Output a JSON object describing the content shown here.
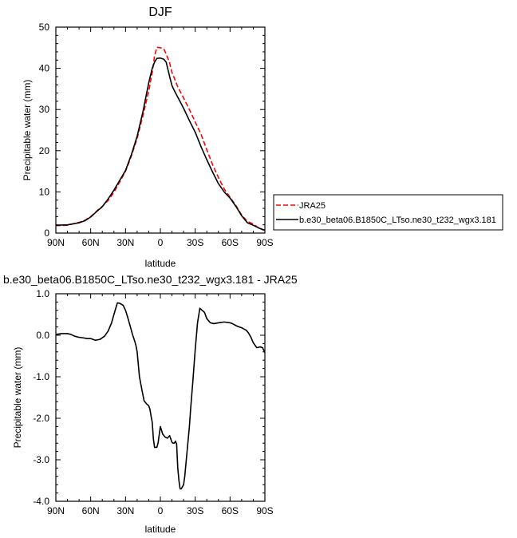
{
  "chart_data": [
    {
      "type": "line",
      "title": "DJF",
      "xlabel": "latitude",
      "ylabel": "Precipitable water (mm)",
      "xlim": [
        90,
        -90
      ],
      "ylim": [
        0,
        50
      ],
      "x_ticks": [
        {
          "value": 90,
          "label": "90N"
        },
        {
          "value": 60,
          "label": "60N"
        },
        {
          "value": 30,
          "label": "30N"
        },
        {
          "value": 0,
          "label": "0"
        },
        {
          "value": -30,
          "label": "30S"
        },
        {
          "value": -60,
          "label": "60S"
        },
        {
          "value": -90,
          "label": "90S"
        }
      ],
      "y_ticks": [
        {
          "value": 0,
          "label": "0"
        },
        {
          "value": 10,
          "label": "10"
        },
        {
          "value": 20,
          "label": "20"
        },
        {
          "value": 30,
          "label": "30"
        },
        {
          "value": 40,
          "label": "40"
        },
        {
          "value": 50,
          "label": "50"
        }
      ],
      "grid": false,
      "legend_position": "right",
      "series": [
        {
          "name": "JRA25",
          "color": "#ff0000",
          "dash": true,
          "x": [
            90,
            80,
            70,
            65,
            60,
            55,
            50,
            45,
            40,
            35,
            30,
            25,
            20,
            15,
            10,
            7,
            5,
            3,
            0,
            -3,
            -5,
            -8,
            -10,
            -12,
            -15,
            -20,
            -25,
            -30,
            -35,
            -40,
            -45,
            -50,
            -55,
            -60,
            -65,
            -70,
            -75,
            -80,
            -85,
            -88,
            -90
          ],
          "y": [
            1.8,
            1.9,
            2.6,
            3.1,
            4.0,
            5.3,
            6.5,
            7.9,
            9.9,
            12.4,
            15.0,
            18.7,
            23.0,
            28.5,
            34.5,
            39.0,
            43.0,
            45.1,
            45.0,
            44.7,
            43.5,
            41.3,
            39.0,
            37.6,
            35.5,
            32.8,
            30.0,
            27.0,
            24.0,
            20.2,
            16.6,
            13.5,
            10.7,
            8.7,
            6.7,
            4.4,
            2.8,
            2.2,
            1.2,
            0.8,
            0.7
          ]
        },
        {
          "name": "b.e30_beta06.B1850C_LTso.ne30_t232_wgx3.181",
          "color": "#000000",
          "dash": false,
          "x": [
            90,
            80,
            70,
            65,
            60,
            55,
            50,
            45,
            40,
            35,
            30,
            25,
            20,
            15,
            10,
            7,
            5,
            3,
            0,
            -3,
            -5,
            -8,
            -10,
            -12,
            -15,
            -20,
            -25,
            -30,
            -35,
            -40,
            -45,
            -50,
            -55,
            -60,
            -65,
            -70,
            -75,
            -80,
            -85,
            -88,
            -90
          ],
          "y": [
            1.9,
            2.0,
            2.5,
            3.0,
            3.9,
            5.2,
            6.4,
            8.3,
            10.4,
            12.8,
            15.2,
            19.0,
            23.5,
            29.5,
            36.5,
            40.0,
            41.5,
            42.4,
            42.5,
            42.2,
            41.5,
            38.0,
            35.8,
            34.6,
            33.0,
            30.3,
            27.3,
            24.5,
            21.0,
            17.8,
            14.8,
            12.0,
            10.0,
            8.5,
            6.5,
            4.2,
            2.5,
            1.9,
            1.2,
            0.9,
            0.7
          ]
        }
      ]
    },
    {
      "type": "line",
      "title": "b.e30_beta06.B1850C_LTso.ne30_t232_wgx3.181 - JRA25",
      "xlabel": "latitude",
      "ylabel": "Precipitable water (mm)",
      "xlim": [
        90,
        -90
      ],
      "ylim": [
        -4.0,
        1.0
      ],
      "x_ticks": [
        {
          "value": 90,
          "label": "90N"
        },
        {
          "value": 60,
          "label": "60N"
        },
        {
          "value": 30,
          "label": "30N"
        },
        {
          "value": 0,
          "label": "0"
        },
        {
          "value": -30,
          "label": "30S"
        },
        {
          "value": -60,
          "label": "60S"
        },
        {
          "value": -90,
          "label": "90S"
        }
      ],
      "y_ticks": [
        {
          "value": -4.0,
          "label": "-4.0"
        },
        {
          "value": -3.0,
          "label": "-3.0"
        },
        {
          "value": -2.0,
          "label": "-2.0"
        },
        {
          "value": -1.0,
          "label": "-1.0"
        },
        {
          "value": 0.0,
          "label": "0.0"
        },
        {
          "value": 1.0,
          "label": "1.0"
        }
      ],
      "grid": false,
      "series": [
        {
          "color": "#000000",
          "dash": false,
          "x": [
            90,
            85,
            80,
            77,
            74,
            70,
            67,
            63,
            60,
            56,
            52,
            48,
            45,
            42,
            40,
            37,
            35,
            32,
            30,
            28,
            26,
            24,
            22,
            21,
            20,
            19,
            18,
            16,
            14,
            12,
            10,
            9,
            8,
            7,
            6,
            5,
            4,
            3,
            2,
            1,
            0,
            -2,
            -4,
            -6,
            -8,
            -10,
            -11,
            -12,
            -13,
            -14,
            -15,
            -16,
            -17,
            -18,
            -19,
            -20,
            -21,
            -22,
            -23,
            -24,
            -25,
            -26,
            -28,
            -30,
            -32,
            -34,
            -36,
            -38,
            -40,
            -43,
            -46,
            -50,
            -55,
            -60,
            -62,
            -64,
            -66,
            -68,
            -70,
            -72,
            -74,
            -76,
            -78,
            -80,
            -83,
            -86,
            -88,
            -90
          ],
          "y": [
            0.02,
            0.04,
            0.04,
            0.02,
            -0.02,
            -0.05,
            -0.06,
            -0.08,
            -0.08,
            -0.12,
            -0.1,
            -0.02,
            0.1,
            0.3,
            0.5,
            0.78,
            0.77,
            0.72,
            0.6,
            0.42,
            0.22,
            0.02,
            -0.15,
            -0.25,
            -0.4,
            -0.7,
            -1.0,
            -1.3,
            -1.58,
            -1.65,
            -1.7,
            -1.78,
            -1.95,
            -2.1,
            -2.5,
            -2.7,
            -2.7,
            -2.7,
            -2.6,
            -2.4,
            -2.2,
            -2.38,
            -2.45,
            -2.48,
            -2.42,
            -2.58,
            -2.6,
            -2.6,
            -2.55,
            -2.62,
            -3.2,
            -3.5,
            -3.7,
            -3.7,
            -3.65,
            -3.6,
            -3.4,
            -3.1,
            -2.8,
            -2.5,
            -2.2,
            -1.8,
            -1.1,
            -0.35,
            0.3,
            0.65,
            0.6,
            0.55,
            0.4,
            0.3,
            0.28,
            0.3,
            0.32,
            0.3,
            0.28,
            0.25,
            0.22,
            0.2,
            0.18,
            0.15,
            0.12,
            0.05,
            -0.05,
            -0.18,
            -0.3,
            -0.28,
            -0.3,
            -0.42
          ]
        }
      ]
    }
  ]
}
